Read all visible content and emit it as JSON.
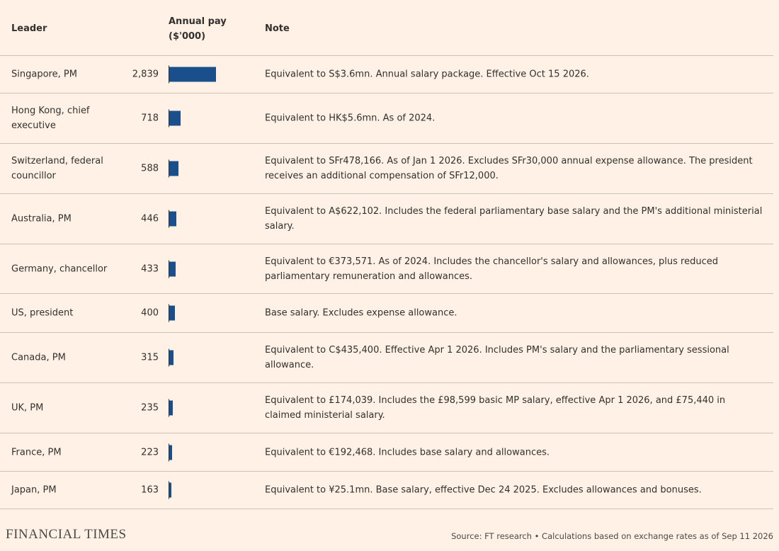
{
  "table": {
    "headers": [
      "Leader",
      "Annual pay ($'000)",
      "Note"
    ],
    "rows": [
      {
        "leader": "Singapore, PM",
        "pay": {
          "value": 2839,
          "label": "2,839"
        },
        "note": "Equivalent to S$3.6mn. Annual salary package. Effective Oct 15 2026."
      },
      {
        "leader": "Hong Kong, chief executive",
        "pay": 718,
        "note": "Equivalent to HK$5.6mn. As of 2024."
      },
      {
        "leader": "Switzerland, federal councillor",
        "pay": 588,
        "note": "Equivalent to SFr478,166. As of Jan 1 2026. Excludes SFr30,000 annual expense allowance. The president receives an additional compensation of SFr12,000."
      },
      {
        "leader": "Australia, PM",
        "pay": 446,
        "note": "Equivalent to A$622,102. Includes the federal parliamentary base salary and the PM's additional ministerial salary."
      },
      {
        "leader": "Germany, chancellor",
        "pay": 433,
        "note": "Equivalent to €373,571. As of 2024. Includes the chancellor's salary and allowances, plus reduced parliamentary remuneration and allowances."
      },
      {
        "leader": "US, president",
        "pay": 400,
        "note": "Base salary. Excludes expense allowance."
      },
      {
        "leader": "Canada, PM",
        "pay": 315,
        "note": "Equivalent to C$435,400. Effective Apr 1 2026. Includes PM's salary and the parliamentary sessional allowance."
      },
      {
        "leader": "UK, PM",
        "pay": 235,
        "note": "Equivalent to £174,039. Includes the £98,599 basic MP salary, effective Apr 1 2026, and £75,440 in claimed ministerial salary."
      },
      {
        "leader": "France, PM",
        "pay": 223,
        "note": "Equivalent to €192,468. Includes base salary and allowances."
      },
      {
        "leader": "Japan, PM",
        "pay": 163,
        "note": "Equivalent to ¥25.1mn. Base salary, effective Dec 24 2025. Excludes allowances and bonuses."
      }
    ],
    "bar_color": "#1a4f8b"
  },
  "footer": {
    "logo": "FINANCIAL TIMES",
    "source": "Source: FT research • Calculations based on exchange rates as of Sep 11 2026"
  }
}
